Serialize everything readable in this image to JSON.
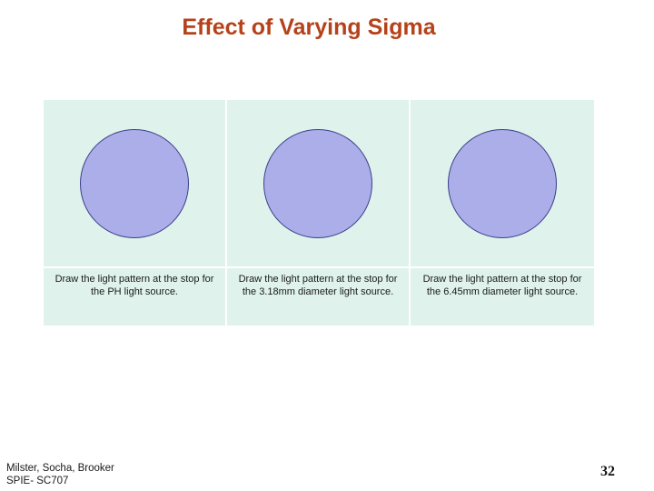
{
  "slide": {
    "title": "Effect of Varying Sigma",
    "panels": [
      {
        "caption": "Draw the light pattern at the stop for the PH light source."
      },
      {
        "caption": "Draw the light pattern at the stop for the 3.18mm diameter light source."
      },
      {
        "caption": "Draw the light pattern at the stop for the 6.45mm diameter light source."
      }
    ],
    "footer": {
      "author_line": "Milster, Socha, Brooker",
      "course_line": "SPIE- SC707",
      "page_number": "32"
    },
    "colors": {
      "title": "#b5421a",
      "panel_background": "#dff2eb",
      "circle_fill": "#acaeea",
      "circle_outline": "#3a3f8a"
    }
  }
}
